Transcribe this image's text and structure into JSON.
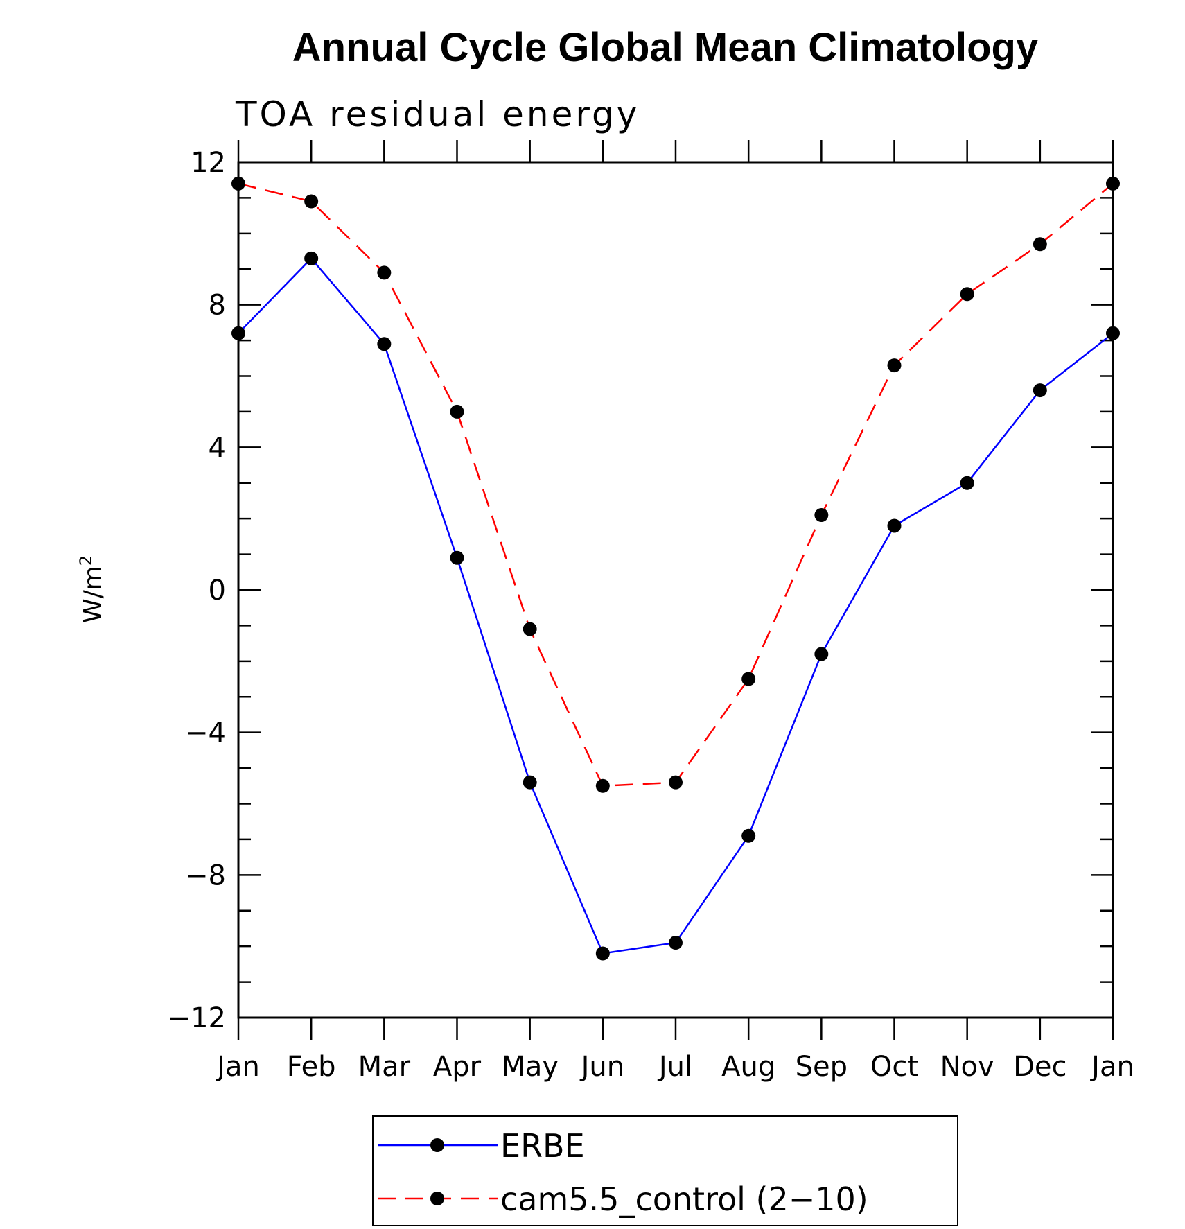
{
  "chart_data": {
    "type": "line",
    "title": "Annual Cycle Global Mean Climatology",
    "subtitle": "TOA residual energy",
    "xlabel": "",
    "ylabel": "W/m",
    "ylabel_superscript": "2",
    "categories": [
      "Jan",
      "Feb",
      "Mar",
      "Apr",
      "May",
      "Jun",
      "Jul",
      "Aug",
      "Sep",
      "Oct",
      "Nov",
      "Dec",
      "Jan"
    ],
    "ylim": [
      -12,
      12
    ],
    "yticks": [
      {
        "value": 12,
        "label": "12"
      },
      {
        "value": 8,
        "label": "8"
      },
      {
        "value": 4,
        "label": "4"
      },
      {
        "value": 0,
        "label": "0"
      },
      {
        "value": -4,
        "label": "−4"
      },
      {
        "value": -8,
        "label": "−8"
      },
      {
        "value": -12,
        "label": "−12"
      }
    ],
    "grid": false,
    "legend_position": "bottom",
    "series": [
      {
        "name": "ERBE",
        "color": "#0000ff",
        "line_style": "solid",
        "marker": "filled-circle",
        "values": [
          7.2,
          9.3,
          6.9,
          0.9,
          -5.4,
          -10.2,
          -9.9,
          -6.9,
          -1.8,
          1.8,
          3.0,
          5.6,
          7.2
        ]
      },
      {
        "name": "cam5.5_control (2−10)",
        "color": "#ff0000",
        "line_style": "dashed",
        "marker": "filled-circle",
        "values": [
          11.4,
          10.9,
          8.9,
          5.0,
          -1.1,
          -5.5,
          -5.4,
          -2.5,
          2.1,
          6.3,
          8.3,
          9.7,
          11.4
        ]
      }
    ]
  }
}
